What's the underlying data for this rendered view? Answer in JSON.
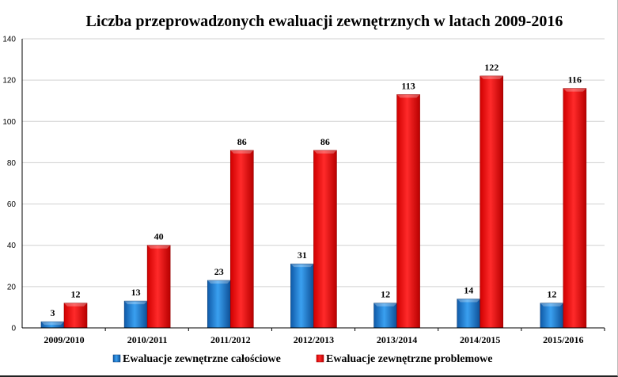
{
  "chart_data": {
    "type": "bar",
    "title": "Liczba przeprowadzonych ewaluacji zewnętrznych w latach 2009-2016",
    "xlabel": "",
    "ylabel": "",
    "ylim": [
      0,
      140
    ],
    "yticks": [
      0,
      20,
      40,
      60,
      80,
      100,
      120,
      140
    ],
    "grid": true,
    "legend_position": "bottom",
    "categories": [
      "2009/2010",
      "2010/2011",
      "2011/2012",
      "2012/2013",
      "2013/2014",
      "2014/2015",
      "2015/2016"
    ],
    "series": [
      {
        "name": "Ewaluacje zewnętrzne całościowe",
        "color": "#1f78c8",
        "values": [
          3,
          13,
          23,
          31,
          12,
          14,
          12
        ]
      },
      {
        "name": "Ewaluacje zewnętrzne problemowe",
        "color": "#ff0000",
        "values": [
          12,
          40,
          86,
          86,
          113,
          122,
          116
        ]
      }
    ]
  }
}
